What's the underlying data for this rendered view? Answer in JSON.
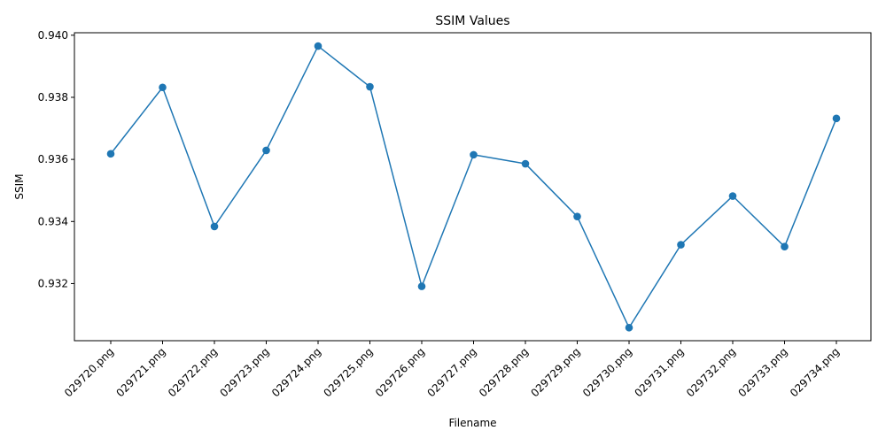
{
  "chart_data": {
    "type": "line",
    "title": "SSIM Values",
    "xlabel": "Filename",
    "ylabel": "SSIM",
    "categories": [
      "029720.png",
      "029721.png",
      "029722.png",
      "029723.png",
      "029724.png",
      "029725.png",
      "029726.png",
      "029727.png",
      "029728.png",
      "029729.png",
      "029730.png",
      "029731.png",
      "029732.png",
      "029733.png",
      "029734.png"
    ],
    "series": [
      {
        "values": [
          0.93618,
          0.93832,
          0.93384,
          0.93629,
          0.93965,
          0.93834,
          0.93191,
          0.93615,
          0.93586,
          0.93416,
          0.93058,
          0.93325,
          0.93482,
          0.93319,
          0.93732
        ],
        "color": "#1f77b4",
        "marker": "circle"
      }
    ],
    "ylim": [
      0.93016,
      0.94008
    ],
    "yticks": [
      0.932,
      0.934,
      0.936,
      0.938,
      0.94
    ],
    "ytick_labels": [
      "0.932",
      "0.934",
      "0.936",
      "0.938",
      "0.940"
    ],
    "grid": false,
    "legend": "none"
  }
}
